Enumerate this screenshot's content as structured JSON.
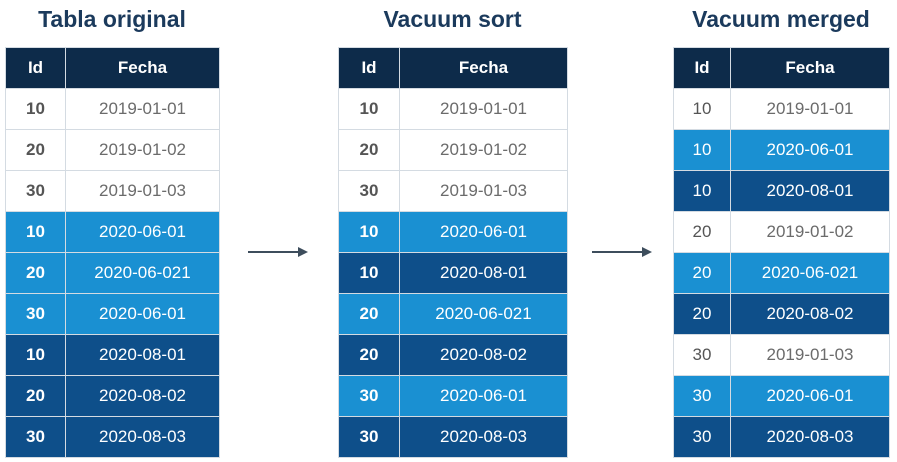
{
  "panels": [
    {
      "title": "Tabla original",
      "headers": [
        "Id",
        "Fecha"
      ],
      "rows": [
        {
          "id": "10",
          "fecha": "2019-01-01",
          "color": "white"
        },
        {
          "id": "20",
          "fecha": "2019-01-02",
          "color": "white"
        },
        {
          "id": "30",
          "fecha": "2019-01-03",
          "color": "white"
        },
        {
          "id": "10",
          "fecha": "2020-06-01",
          "color": "light"
        },
        {
          "id": "20",
          "fecha": "2020-06-021",
          "color": "light"
        },
        {
          "id": "30",
          "fecha": "2020-06-01",
          "color": "light"
        },
        {
          "id": "10",
          "fecha": "2020-08-01",
          "color": "dark"
        },
        {
          "id": "20",
          "fecha": "2020-08-02",
          "color": "dark"
        },
        {
          "id": "30",
          "fecha": "2020-08-03",
          "color": "dark"
        }
      ]
    },
    {
      "title": "Vacuum sort",
      "headers": [
        "Id",
        "Fecha"
      ],
      "rows": [
        {
          "id": "10",
          "fecha": "2019-01-01",
          "color": "white"
        },
        {
          "id": "20",
          "fecha": "2019-01-02",
          "color": "white"
        },
        {
          "id": "30",
          "fecha": "2019-01-03",
          "color": "white"
        },
        {
          "id": "10",
          "fecha": "2020-06-01",
          "color": "light"
        },
        {
          "id": "10",
          "fecha": "2020-08-01",
          "color": "dark"
        },
        {
          "id": "20",
          "fecha": "2020-06-021",
          "color": "light"
        },
        {
          "id": "20",
          "fecha": "2020-08-02",
          "color": "dark"
        },
        {
          "id": "30",
          "fecha": "2020-06-01",
          "color": "light"
        },
        {
          "id": "30",
          "fecha": "2020-08-03",
          "color": "dark"
        }
      ]
    },
    {
      "title": "Vacuum merged",
      "headers": [
        "Id",
        "Fecha"
      ],
      "rows": [
        {
          "id": "10",
          "fecha": "2019-01-01",
          "color": "white"
        },
        {
          "id": "10",
          "fecha": "2020-06-01",
          "color": "light"
        },
        {
          "id": "10",
          "fecha": "2020-08-01",
          "color": "dark"
        },
        {
          "id": "20",
          "fecha": "2019-01-02",
          "color": "white"
        },
        {
          "id": "20",
          "fecha": "2020-06-021",
          "color": "light"
        },
        {
          "id": "20",
          "fecha": "2020-08-02",
          "color": "dark"
        },
        {
          "id": "30",
          "fecha": "2019-01-03",
          "color": "white"
        },
        {
          "id": "30",
          "fecha": "2020-06-01",
          "color": "light"
        },
        {
          "id": "30",
          "fecha": "2020-08-03",
          "color": "dark"
        }
      ]
    }
  ],
  "colors": {
    "header_bg": "#0d2b4a",
    "title_text": "#1b3a5c",
    "light_row": "#1a90d2",
    "dark_row": "#0e4f8a",
    "white_row": "#ffffff",
    "arrow": "#3d4d5c"
  }
}
